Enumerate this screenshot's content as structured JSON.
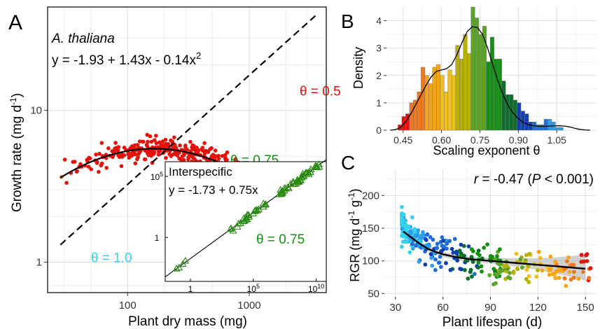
{
  "colors": {
    "theta_scale": [
      "#e3120b",
      "#f07820",
      "#f5a50f",
      "#f2c01d",
      "#b8b000",
      "#5aa428",
      "#159015",
      "#0e6c2c",
      "#0f3fae",
      "#1f6dd6",
      "#2c9fe8",
      "#33d3f0"
    ],
    "fit_line": "#000000",
    "inset_marker": "#2a8a12",
    "ci_band": "#bdbdbd"
  },
  "panels": {
    "A": {
      "letter": "A"
    },
    "B": {
      "letter": "B"
    },
    "C": {
      "letter": "C"
    }
  },
  "chart_data": [
    {
      "id": "A",
      "type": "scatter",
      "xlabel": "Plant dry mass (mg)",
      "ylabel": "Growth rate (mg d",
      "ylabel_sup": "-1",
      "ylabel_end": ")",
      "xscale": "log",
      "yscale": "log",
      "xlim": [
        22,
        4300
      ],
      "ylim": [
        0.63,
        48
      ],
      "xticks": [
        100,
        1000
      ],
      "xtick_labels": [
        "100",
        "1000"
      ],
      "yticks": [
        1,
        10
      ],
      "ytick_labels": [
        "1",
        "10"
      ],
      "grid": true,
      "species_label": "A. thaliana",
      "equation_parts": [
        "y = -1.93 + 1.43x - 0.14x",
        "2"
      ],
      "fit": {
        "a": -1.93,
        "b": 1.43,
        "c": -0.14
      },
      "dashed_line": {
        "x": [
          28,
          3500
        ],
        "y": [
          1.3,
          42
        ]
      },
      "annotations": [
        {
          "text": "θ = 0.5",
          "color": "#e3120b",
          "x": 2600,
          "y": 12.5
        },
        {
          "text": "θ = 0.75",
          "color": "#159015",
          "x": 700,
          "y": 4.4
        },
        {
          "text": "θ = 1.0",
          "color": "#33d3f0",
          "x": 50,
          "y": 1.0
        }
      ],
      "points_color_by": "local slope (theta)",
      "inset": {
        "title": "Interspecific",
        "equation": "y = -1.73 + 0.75x",
        "theta_label": "θ = 0.75",
        "xscale": "log",
        "yscale": "log",
        "xlim_log10": [
          -2,
          10.8
        ],
        "ylim_log10": [
          -3.6,
          6.2
        ],
        "xtick_labels": [
          "1",
          "10",
          "10"
        ],
        "xtick_sups": [
          "",
          "5",
          "10"
        ],
        "xtick_log10": [
          0,
          5,
          10
        ],
        "ytick_labels": [
          "10",
          "1"
        ],
        "ytick_sups": [
          "5",
          ""
        ],
        "ytick_log10": [
          5,
          0
        ],
        "fit": {
          "intercept": -1.73,
          "slope": 0.75
        },
        "marker": "open triangle"
      }
    },
    {
      "id": "B",
      "type": "bar",
      "xlabel": "Scaling exponent θ",
      "ylabel": "Density",
      "xlim": [
        0.385,
        1.205
      ],
      "ylim": [
        0,
        4.5
      ],
      "xticks": [
        0.45,
        0.6,
        0.75,
        0.9,
        1.05
      ],
      "xtick_labels": [
        "0.45",
        "0.60",
        "0.75",
        "0.90",
        "1.05"
      ],
      "yticks": [
        0,
        1,
        2,
        3,
        4
      ],
      "ytick_labels": [
        "0",
        "1",
        "2",
        "3",
        "4"
      ],
      "grid": true,
      "bin_start": 0.43,
      "bin_width": 0.015,
      "values": [
        0.2,
        0.5,
        0.6,
        1.0,
        1.1,
        1.4,
        2.3,
        2.0,
        1.7,
        2.3,
        2.4,
        2.0,
        1.4,
        2.2,
        2.0,
        3.1,
        2.6,
        3.5,
        2.8,
        4.5,
        4.1,
        3.5,
        3.8,
        2.5,
        3.4,
        2.6,
        2.6,
        1.8,
        1.3,
        1.3,
        1.1,
        1.0,
        0.7,
        0.6,
        0.3,
        0.3,
        0.2,
        0.2,
        0.4,
        0.4,
        0.3,
        0.1,
        0.1
      ],
      "density_x": [
        0.4,
        0.42,
        0.44,
        0.46,
        0.48,
        0.5,
        0.52,
        0.54,
        0.56,
        0.58,
        0.6,
        0.62,
        0.64,
        0.66,
        0.68,
        0.7,
        0.72,
        0.74,
        0.76,
        0.78,
        0.8,
        0.82,
        0.84,
        0.86,
        0.88,
        0.9,
        0.92,
        0.94,
        0.96,
        0.98,
        1.0,
        1.02,
        1.04,
        1.06,
        1.08,
        1.1,
        1.12,
        1.14,
        1.16,
        1.18
      ],
      "density_y": [
        0.0,
        0.02,
        0.1,
        0.3,
        0.6,
        0.95,
        1.3,
        1.65,
        1.95,
        2.15,
        2.2,
        2.25,
        2.4,
        2.75,
        3.2,
        3.6,
        3.78,
        3.75,
        3.5,
        3.0,
        2.4,
        1.8,
        1.3,
        0.9,
        0.62,
        0.42,
        0.28,
        0.2,
        0.16,
        0.14,
        0.14,
        0.15,
        0.16,
        0.16,
        0.15,
        0.12,
        0.07,
        0.03,
        0.01,
        0.0
      ]
    },
    {
      "id": "C",
      "type": "scatter",
      "xlabel": "Plant lifespan (d)",
      "ylabel": "RGR (mg d",
      "ylabel_sup1": "-1",
      "ylabel_mid": " g",
      "ylabel_sup2": "-1",
      "ylabel_end": ")",
      "xlim": [
        23,
        157
      ],
      "ylim": [
        45,
        240
      ],
      "xticks": [
        30,
        60,
        90,
        120,
        150
      ],
      "xtick_labels": [
        "30",
        "60",
        "90",
        "120",
        "150"
      ],
      "yticks": [
        50,
        100,
        150,
        200
      ],
      "ytick_labels": [
        "50",
        "100",
        "150",
        "200"
      ],
      "grid": true,
      "stat_r": "r",
      "stat_text": " = -0.47 (",
      "stat_p": "P",
      "stat_end": " < 0.001)",
      "fit_line": {
        "x": [
          35,
          40,
          45,
          50,
          55,
          60,
          70,
          80,
          90,
          100,
          110,
          120,
          130,
          140,
          150
        ],
        "y": [
          145,
          136,
          127,
          119,
          114,
          110,
          105,
          102,
          100,
          98,
          96,
          94,
          92,
          90,
          88
        ]
      },
      "ci_upper": [
        152,
        141,
        131,
        123,
        118,
        114,
        108,
        106,
        105,
        104,
        104,
        104,
        105,
        107,
        110
      ],
      "ci_lower": [
        138,
        131,
        123,
        115,
        110,
        106,
        101,
        98,
        96,
        93,
        90,
        86,
        81,
        76,
        70
      ]
    }
  ]
}
